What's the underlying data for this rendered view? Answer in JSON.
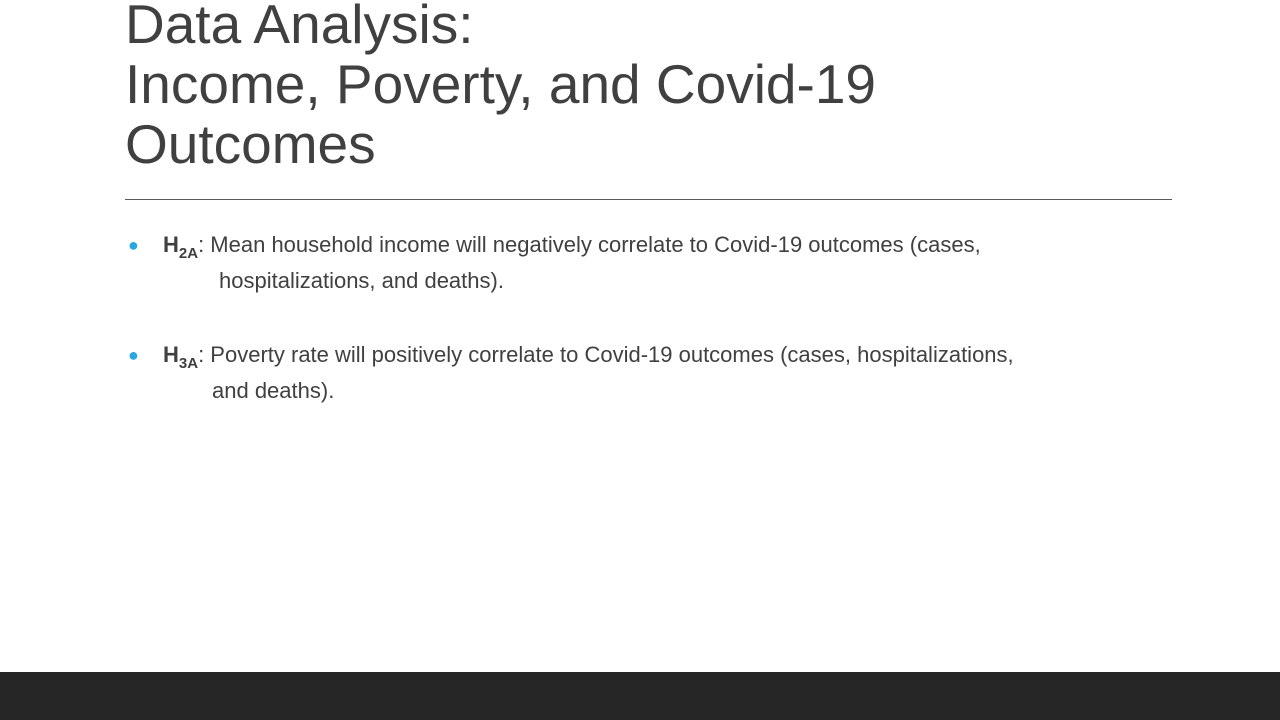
{
  "slide": {
    "title_lines": [
      "Data Analysis:",
      "Income, Poverty, and Covid-19",
      "Outcomes"
    ],
    "bullets": [
      {
        "marker": "●",
        "hyp_letter": "H",
        "hyp_subscript": "2A",
        "line1": ": Mean household income will negatively correlate to Covid-19 outcomes (cases,",
        "line2": "hospitalizations, and deaths)."
      },
      {
        "marker": "●",
        "hyp_letter": "H",
        "hyp_subscript": "3A",
        "line1": ": Poverty rate will positively correlate to Covid-19 outcomes (cases, hospitalizations,",
        "line2": "and deaths)."
      }
    ]
  },
  "colors": {
    "text": "#404040",
    "bullet": "#29a8e0",
    "rule": "#595959",
    "footer": "#262626",
    "background": "#ffffff"
  }
}
